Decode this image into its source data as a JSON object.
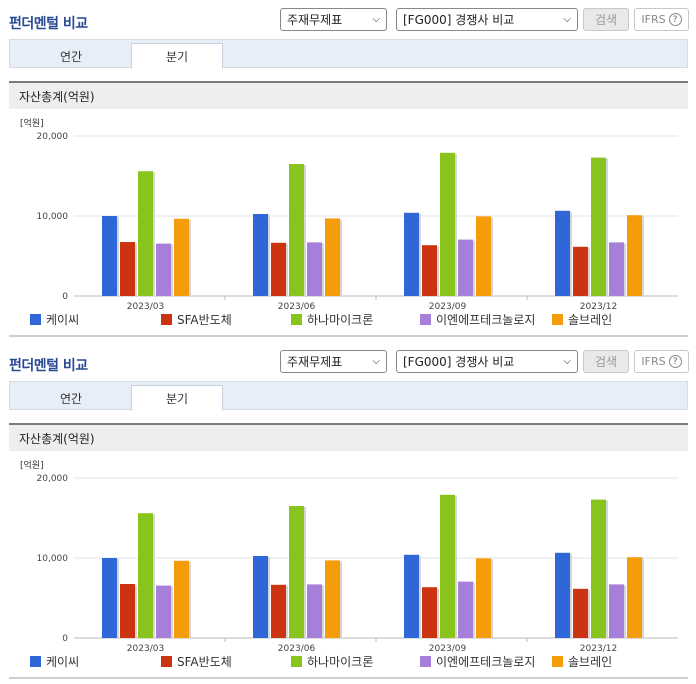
{
  "header": {
    "title": "펀더멘털 비교",
    "select_report": "주재무제표",
    "select_compare": "[FG000] 경쟁사 비교",
    "search_label": "검색",
    "ifrs_label": "IFRS",
    "help_symbol": "?"
  },
  "tabs": [
    {
      "label": "연간",
      "active": false
    },
    {
      "label": "분기",
      "active": true
    }
  ],
  "chart_data": {
    "type": "bar",
    "title": "자산총계(억원)",
    "unit_label": "[억원]",
    "categories": [
      "2023/03",
      "2023/06",
      "2023/09",
      "2023/12"
    ],
    "ylim": [
      0,
      20000
    ],
    "yticks": [
      0,
      10000,
      20000
    ],
    "ytick_labels": [
      "0",
      "10,000",
      "20,000"
    ],
    "grid": true,
    "legend_position": "bottom",
    "series": [
      {
        "name": "케이씨",
        "color": "#2f66d8",
        "values": [
          10000,
          10250,
          10400,
          10650
        ]
      },
      {
        "name": "SFA반도체",
        "color": "#cc3311",
        "values": [
          6750,
          6650,
          6350,
          6150
        ]
      },
      {
        "name": "하나마이크론",
        "color": "#88c41c",
        "values": [
          15600,
          16500,
          17900,
          17300
        ]
      },
      {
        "name": "이엔에프테크놀로지",
        "color": "#a57fd9",
        "values": [
          6550,
          6700,
          7050,
          6700
        ]
      },
      {
        "name": "솔브레인",
        "color": "#f59c0a",
        "values": [
          9650,
          9700,
          9950,
          10100
        ]
      }
    ]
  }
}
